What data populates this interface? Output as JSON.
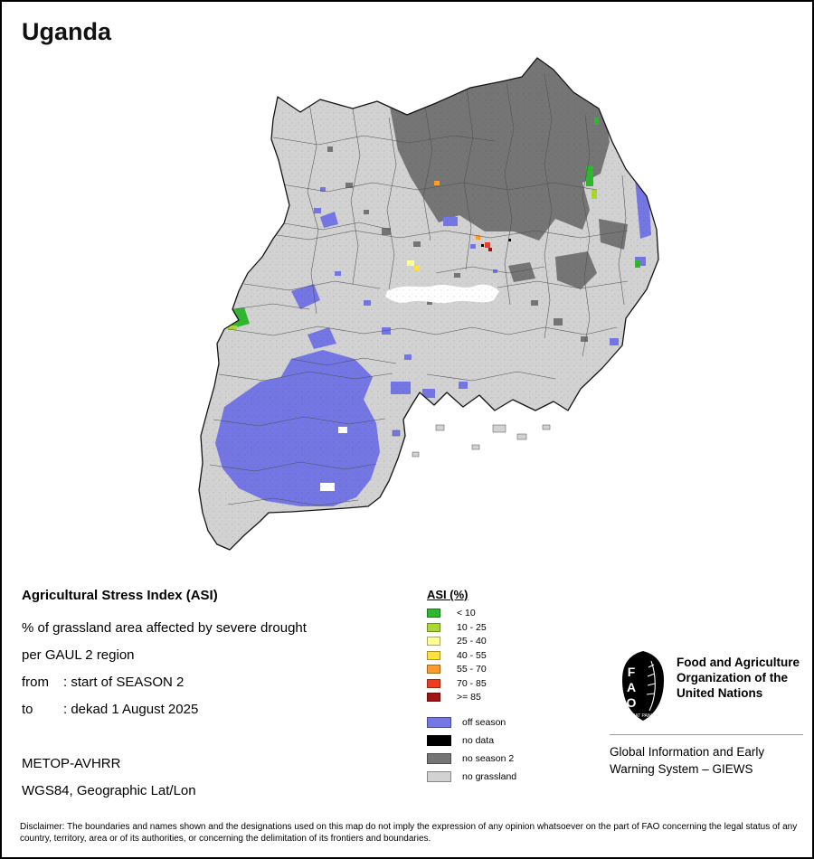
{
  "page": {
    "title": "Uganda"
  },
  "colors": {
    "asi_lt_10": "#2fb82f",
    "asi_10_25": "#a9d832",
    "asi_25_40": "#ffff99",
    "asi_40_55": "#ffe23c",
    "asi_55_70": "#ff9c2a",
    "asi_70_85": "#f03c1e",
    "asi_ge_85": "#a31212",
    "off_season": "#7476e4",
    "no_data": "#000000",
    "no_season_2": "#757575",
    "no_grassland": "#d2d2d2",
    "water": "#ffffff"
  },
  "info": {
    "heading": "Agricultural Stress Index (ASI)",
    "line1": "% of grassland area affected by severe drought",
    "line2": "per GAUL 2 region",
    "from_label": "from",
    "from_value": ": start of SEASON 2",
    "to_label": "to",
    "to_value": ": dekad 1 August 2025",
    "sensor": "METOP-AVHRR",
    "projection": "WGS84, Geographic Lat/Lon"
  },
  "legend": {
    "title": "ASI (%)",
    "asi_classes": [
      {
        "label": "< 10",
        "color_key": "asi_lt_10"
      },
      {
        "label": "10 - 25",
        "color_key": "asi_10_25"
      },
      {
        "label": "25 - 40",
        "color_key": "asi_25_40"
      },
      {
        "label": "40 - 55",
        "color_key": "asi_40_55"
      },
      {
        "label": "55 - 70",
        "color_key": "asi_55_70"
      },
      {
        "label": "70 - 85",
        "color_key": "asi_70_85"
      },
      {
        "label": ">= 85",
        "color_key": "asi_ge_85"
      }
    ],
    "coverage_classes": [
      {
        "label": "off season",
        "color_key": "off_season"
      },
      {
        "label": "no data",
        "color_key": "no_data"
      },
      {
        "label": "no season 2",
        "color_key": "no_season_2"
      },
      {
        "label": "no grassland",
        "color_key": "no_grassland"
      }
    ]
  },
  "branding": {
    "logo_letters": "FAO",
    "logo_motto": "FIAT PANIS",
    "fao_name": "Food and Agriculture Organization of the United Nations",
    "giews": "Global Information and Early Warning System – GIEWS"
  },
  "disclaimer": "Disclaimer: The boundaries and names shown and the designations used on this map do not imply the expression of any opinion whatsoever on the part of FAO concerning the legal status of any country, territory, area or of its authorities, or concerning the delimitation of its frontiers and boundaries."
}
